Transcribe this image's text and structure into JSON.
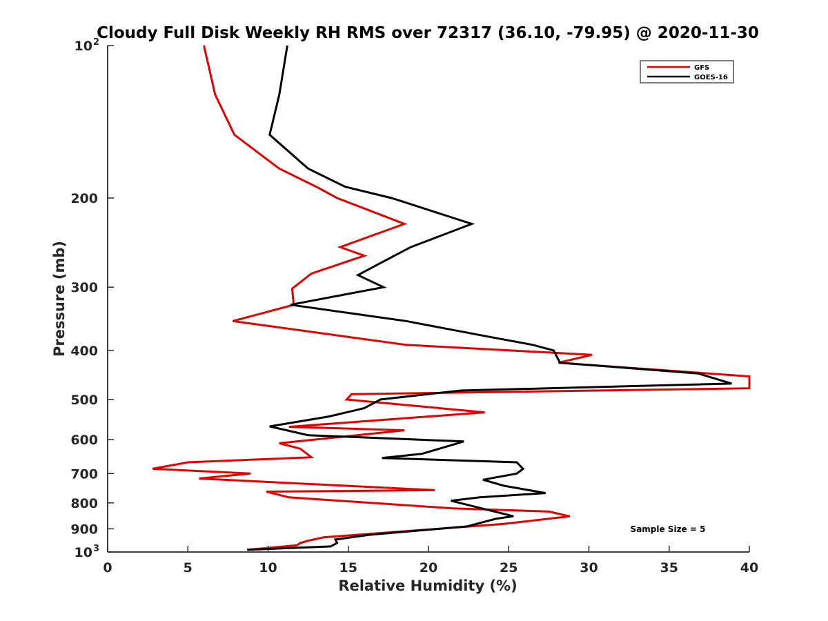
{
  "chart_data": {
    "type": "line",
    "title": "Cloudy Full Disk Weekly RH RMS over 72317 (36.10, -79.95) @ 2020-11-30",
    "xlabel": "Relative Humidity (%)",
    "ylabel": "Pressure (mb)",
    "xlim": [
      0,
      40
    ],
    "ylim": [
      100,
      1000
    ],
    "yscale": "log",
    "y_reversed": true,
    "x_ticks": [
      "0",
      "5",
      "10",
      "15",
      "20",
      "25",
      "30",
      "35",
      "40"
    ],
    "y_ticks": [
      {
        "value": 100,
        "label": "10",
        "sup": "2"
      },
      {
        "value": 200,
        "label": "200"
      },
      {
        "value": 300,
        "label": "300"
      },
      {
        "value": 400,
        "label": "400"
      },
      {
        "value": 500,
        "label": "500"
      },
      {
        "value": 600,
        "label": "600"
      },
      {
        "value": 700,
        "label": "700"
      },
      {
        "value": 800,
        "label": "800"
      },
      {
        "value": 900,
        "label": "900"
      },
      {
        "value": 1000,
        "label": "10",
        "sup": "3"
      }
    ],
    "legend_position": "top-right",
    "grid": false,
    "annotation": "Sample Size = 5",
    "series": [
      {
        "name": "GFS",
        "color": "#e00000",
        "points": [
          [
            6.0,
            100
          ],
          [
            6.7,
            125
          ],
          [
            7.9,
            150
          ],
          [
            10.7,
            175
          ],
          [
            13.0,
            190
          ],
          [
            14.3,
            200
          ],
          [
            18.5,
            225
          ],
          [
            14.5,
            250
          ],
          [
            16.0,
            260
          ],
          [
            12.7,
            282
          ],
          [
            11.5,
            302
          ],
          [
            11.6,
            325
          ],
          [
            7.8,
            350
          ],
          [
            18.6,
            390
          ],
          [
            30.2,
            408
          ],
          [
            28.1,
            423
          ],
          [
            40.0,
            450
          ],
          [
            40.0,
            475
          ],
          [
            15.2,
            488
          ],
          [
            14.9,
            500
          ],
          [
            23.5,
            530
          ],
          [
            11.3,
            566
          ],
          [
            18.5,
            575
          ],
          [
            10.7,
            610
          ],
          [
            12.0,
            625
          ],
          [
            12.7,
            650
          ],
          [
            5.0,
            665
          ],
          [
            2.8,
            685
          ],
          [
            8.9,
            700
          ],
          [
            5.7,
            716
          ],
          [
            20.4,
            755
          ],
          [
            9.9,
            760
          ],
          [
            11.3,
            780
          ],
          [
            21.5,
            820
          ],
          [
            27.5,
            832
          ],
          [
            28.8,
            850
          ],
          [
            24.7,
            880
          ],
          [
            13.5,
            935
          ],
          [
            12.5,
            950
          ],
          [
            12.0,
            960
          ],
          [
            11.8,
            970
          ],
          [
            8.7,
            990
          ]
        ]
      },
      {
        "name": "GOES-16",
        "color": "#000000",
        "points": [
          [
            11.2,
            100
          ],
          [
            10.7,
            125
          ],
          [
            10.1,
            150
          ],
          [
            12.5,
            175
          ],
          [
            14.8,
            190
          ],
          [
            17.7,
            200
          ],
          [
            22.7,
            225
          ],
          [
            18.9,
            250
          ],
          [
            16.9,
            270
          ],
          [
            15.6,
            284
          ],
          [
            17.2,
            300
          ],
          [
            11.4,
            325
          ],
          [
            18.6,
            350
          ],
          [
            23.6,
            375
          ],
          [
            26.5,
            390
          ],
          [
            27.8,
            400
          ],
          [
            28.2,
            423
          ],
          [
            36.8,
            444
          ],
          [
            38.9,
            465
          ],
          [
            22.0,
            480
          ],
          [
            17.0,
            500
          ],
          [
            16.0,
            520
          ],
          [
            13.8,
            540
          ],
          [
            10.1,
            565
          ],
          [
            12.5,
            588
          ],
          [
            22.2,
            605
          ],
          [
            19.6,
            640
          ],
          [
            17.1,
            652
          ],
          [
            25.5,
            665
          ],
          [
            25.9,
            685
          ],
          [
            25.5,
            700
          ],
          [
            23.4,
            720
          ],
          [
            24.7,
            740
          ],
          [
            27.3,
            765
          ],
          [
            23.2,
            780
          ],
          [
            21.4,
            792
          ],
          [
            25.3,
            850
          ],
          [
            24.2,
            860
          ],
          [
            22.4,
            890
          ],
          [
            16.3,
            925
          ],
          [
            14.2,
            945
          ],
          [
            14.3,
            960
          ],
          [
            13.9,
            975
          ],
          [
            8.7,
            990
          ]
        ]
      }
    ]
  }
}
